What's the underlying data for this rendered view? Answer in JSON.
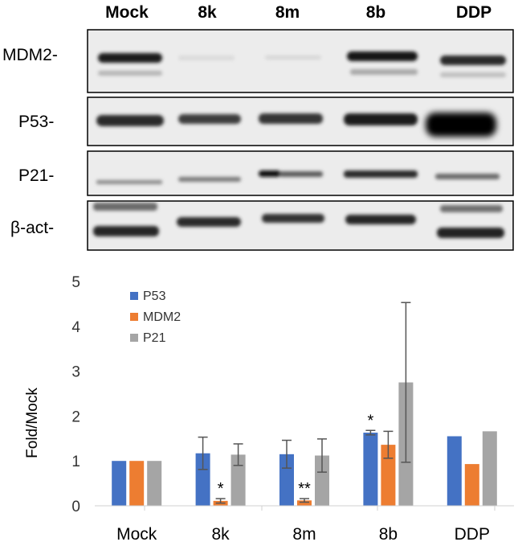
{
  "blot": {
    "lane_labels": [
      "Mock",
      "8k",
      "8m",
      "8b",
      "DDP"
    ],
    "row_labels": [
      "MDM2-",
      "P53-",
      "P21-",
      "β-act-"
    ]
  },
  "chart_data": {
    "type": "bar",
    "categories": [
      "Mock",
      "8k",
      "8m",
      "8b",
      "DDP"
    ],
    "series": [
      {
        "name": "P53",
        "color": "#4472C4",
        "values": [
          1.0,
          1.17,
          1.15,
          1.63,
          1.55
        ],
        "errors": [
          0.0,
          0.36,
          0.31,
          0.05,
          0.0
        ]
      },
      {
        "name": "MDM2",
        "color": "#ED7D31",
        "values": [
          1.0,
          0.11,
          0.12,
          1.36,
          0.93
        ],
        "errors": [
          0.0,
          0.05,
          0.04,
          0.3,
          0.0
        ]
      },
      {
        "name": "P21",
        "color": "#A5A5A5",
        "values": [
          1.0,
          1.14,
          1.12,
          2.75,
          1.66
        ],
        "errors": [
          0.0,
          0.24,
          0.37,
          1.78,
          0.0
        ]
      }
    ],
    "annotations": [
      {
        "category": "8k",
        "series": "MDM2",
        "text": "*"
      },
      {
        "category": "8m",
        "series": "MDM2",
        "text": "**"
      },
      {
        "category": "8b",
        "series": "P53",
        "text": "*"
      }
    ],
    "ylabel": "Fold/Mock",
    "xlabel": "",
    "title": "",
    "ylim": [
      0,
      5
    ],
    "yticks": [
      0,
      1,
      2,
      3,
      4,
      5
    ],
    "grid": false,
    "legend": "top-left"
  }
}
